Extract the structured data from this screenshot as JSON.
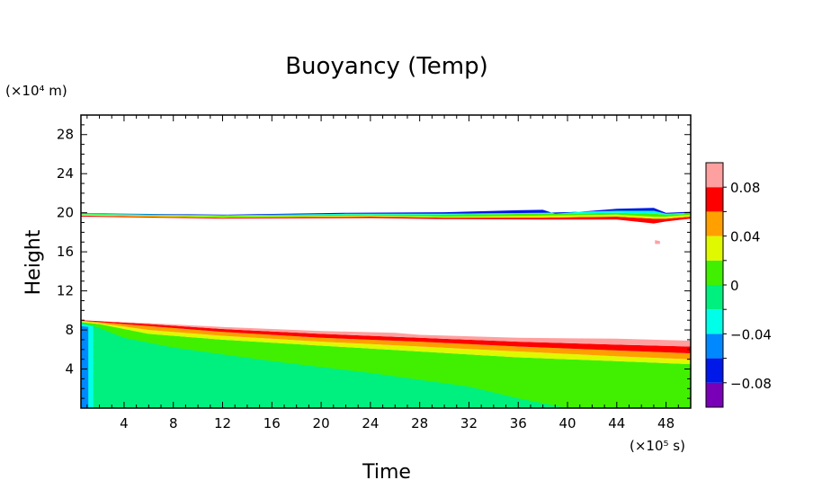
{
  "chart_data": {
    "type": "heatmap",
    "title": "Buoyancy (Temp)",
    "xlabel": "Time",
    "ylabel": "Height",
    "x_unit": "(×10⁵ s)",
    "y_unit": "(×10⁴ m)",
    "xlim": [
      0.5,
      50
    ],
    "ylim": [
      0,
      30
    ],
    "x_ticks": [
      4,
      8,
      12,
      16,
      20,
      24,
      28,
      32,
      36,
      40,
      44,
      48
    ],
    "y_ticks": [
      4,
      8,
      12,
      16,
      20,
      24,
      28
    ],
    "grid": false,
    "colorbar": {
      "range": [
        -0.1,
        0.1
      ],
      "levels": [
        {
          "min": -0.1,
          "max": -0.08,
          "color": "#7a00b8"
        },
        {
          "min": -0.08,
          "max": -0.06,
          "color": "#0018e8"
        },
        {
          "min": -0.06,
          "max": -0.04,
          "color": "#0088ff"
        },
        {
          "min": -0.04,
          "max": -0.02,
          "color": "#00ffe8"
        },
        {
          "min": -0.02,
          "max": 0.0,
          "color": "#00f080"
        },
        {
          "min": 0.0,
          "max": 0.02,
          "color": "#40f000"
        },
        {
          "min": 0.02,
          "max": 0.04,
          "color": "#e0f800"
        },
        {
          "min": 0.04,
          "max": 0.06,
          "color": "#ffa000"
        },
        {
          "min": 0.06,
          "max": 0.08,
          "color": "#ff0000"
        },
        {
          "min": 0.08,
          "max": 0.1,
          "color": "#ffa0a0"
        }
      ],
      "tick_values": [
        0.08,
        0.04,
        0,
        -0.04,
        -0.08
      ],
      "tick_labels": [
        "0.08",
        "0.04",
        "0",
        "−0.04",
        "−0.08"
      ]
    },
    "regions": [
      {
        "name": "lower-green-base",
        "color": "#40f000",
        "upper": [
          [
            0.5,
            8.8
          ],
          [
            2,
            8.6
          ],
          [
            6,
            7.6
          ],
          [
            12,
            7.0
          ],
          [
            20,
            6.4
          ],
          [
            28,
            5.8
          ],
          [
            36,
            5.2
          ],
          [
            44,
            4.8
          ],
          [
            50,
            4.5
          ]
        ],
        "lower": [
          [
            0.5,
            0
          ],
          [
            50,
            0
          ]
        ]
      },
      {
        "name": "lower-yellow",
        "color": "#e0f800",
        "upper": [
          [
            0.5,
            8.9
          ],
          [
            2,
            8.7
          ],
          [
            6,
            8.0
          ],
          [
            12,
            7.4
          ],
          [
            20,
            6.8
          ],
          [
            28,
            6.3
          ],
          [
            36,
            5.8
          ],
          [
            44,
            5.3
          ],
          [
            50,
            5.0
          ]
        ],
        "lower": [
          [
            0.5,
            8.8
          ],
          [
            2,
            8.6
          ],
          [
            6,
            7.6
          ],
          [
            12,
            7.0
          ],
          [
            20,
            6.4
          ],
          [
            28,
            5.8
          ],
          [
            36,
            5.2
          ],
          [
            44,
            4.8
          ],
          [
            50,
            4.5
          ]
        ]
      },
      {
        "name": "lower-orange",
        "color": "#ffa000",
        "upper": [
          [
            0.5,
            8.95
          ],
          [
            2,
            8.8
          ],
          [
            6,
            8.4
          ],
          [
            12,
            7.8
          ],
          [
            20,
            7.2
          ],
          [
            28,
            6.8
          ],
          [
            36,
            6.3
          ],
          [
            44,
            5.9
          ],
          [
            50,
            5.6
          ]
        ],
        "lower": [
          [
            0.5,
            8.9
          ],
          [
            2,
            8.7
          ],
          [
            6,
            8.0
          ],
          [
            12,
            7.4
          ],
          [
            20,
            6.8
          ],
          [
            28,
            6.3
          ],
          [
            36,
            5.8
          ],
          [
            44,
            5.3
          ],
          [
            50,
            5.0
          ]
        ]
      },
      {
        "name": "lower-red",
        "color": "#ff0000",
        "upper": [
          [
            0.5,
            9.0
          ],
          [
            2,
            8.9
          ],
          [
            6,
            8.6
          ],
          [
            12,
            8.1
          ],
          [
            20,
            7.6
          ],
          [
            28,
            7.2
          ],
          [
            36,
            6.8
          ],
          [
            44,
            6.5
          ],
          [
            50,
            6.3
          ]
        ],
        "lower": [
          [
            0.5,
            8.95
          ],
          [
            2,
            8.8
          ],
          [
            6,
            8.4
          ],
          [
            12,
            7.8
          ],
          [
            20,
            7.2
          ],
          [
            28,
            6.8
          ],
          [
            36,
            6.3
          ],
          [
            44,
            5.9
          ],
          [
            50,
            5.6
          ]
        ]
      },
      {
        "name": "lower-pink",
        "color": "#ffa0a0",
        "upper": [
          [
            0.5,
            9.0
          ],
          [
            2,
            8.9
          ],
          [
            6,
            8.7
          ],
          [
            12,
            8.3
          ],
          [
            20,
            7.9
          ],
          [
            26,
            7.7
          ],
          [
            28,
            7.5
          ],
          [
            36,
            7.2
          ],
          [
            44,
            7.1
          ],
          [
            50,
            6.9
          ]
        ],
        "lower": [
          [
            0.5,
            9.0
          ],
          [
            2,
            8.9
          ],
          [
            6,
            8.6
          ],
          [
            12,
            8.1
          ],
          [
            20,
            7.6
          ],
          [
            28,
            7.2
          ],
          [
            36,
            6.8
          ],
          [
            44,
            6.5
          ],
          [
            50,
            6.3
          ]
        ]
      },
      {
        "name": "bottom-spring-green",
        "color": "#00f080",
        "upper": [
          [
            0.5,
            8.8
          ],
          [
            2,
            8.2
          ],
          [
            4,
            7.2
          ],
          [
            8,
            6.2
          ],
          [
            16,
            4.8
          ],
          [
            24,
            3.6
          ],
          [
            32,
            2.2
          ],
          [
            36,
            1.0
          ],
          [
            40,
            0
          ]
        ],
        "lower": [
          [
            0.5,
            0
          ],
          [
            40,
            0
          ]
        ]
      },
      {
        "name": "left-cyan-strip",
        "color": "#00ffe8",
        "upper": [
          [
            0.5,
            8.6
          ],
          [
            1.5,
            8.4
          ]
        ],
        "lower": [
          [
            0.5,
            0
          ],
          [
            1.5,
            0
          ]
        ]
      },
      {
        "name": "left-azure-strip",
        "color": "#0088ff",
        "upper": [
          [
            0.5,
            8.4
          ],
          [
            1.1,
            8.3
          ]
        ],
        "lower": [
          [
            0.5,
            0
          ],
          [
            1.1,
            0
          ]
        ]
      },
      {
        "name": "upper-red",
        "color": "#ff0000",
        "upper": [
          [
            0.5,
            19.7
          ],
          [
            12,
            19.5
          ],
          [
            24,
            19.6
          ],
          [
            30,
            19.5
          ],
          [
            38,
            19.5
          ],
          [
            44,
            19.6
          ],
          [
            47,
            19.4
          ],
          [
            48,
            19.4
          ],
          [
            50,
            19.6
          ]
        ],
        "lower": [
          [
            0.5,
            19.6
          ],
          [
            12,
            19.4
          ],
          [
            24,
            19.45
          ],
          [
            30,
            19.35
          ],
          [
            38,
            19.3
          ],
          [
            44,
            19.3
          ],
          [
            47,
            18.9
          ],
          [
            48,
            19.1
          ],
          [
            50,
            19.4
          ]
        ]
      },
      {
        "name": "upper-yellow",
        "color": "#e0f800",
        "upper": [
          [
            0.5,
            19.8
          ],
          [
            12,
            19.6
          ],
          [
            24,
            19.7
          ],
          [
            30,
            19.6
          ],
          [
            38,
            19.7
          ],
          [
            44,
            19.8
          ],
          [
            47,
            19.6
          ],
          [
            48,
            19.6
          ],
          [
            50,
            19.8
          ]
        ],
        "lower": [
          [
            0.5,
            19.7
          ],
          [
            12,
            19.5
          ],
          [
            24,
            19.6
          ],
          [
            30,
            19.5
          ],
          [
            38,
            19.5
          ],
          [
            44,
            19.6
          ],
          [
            47,
            19.4
          ],
          [
            48,
            19.4
          ],
          [
            50,
            19.6
          ]
        ]
      },
      {
        "name": "upper-green",
        "color": "#40f000",
        "upper": [
          [
            0.5,
            19.85
          ],
          [
            12,
            19.7
          ],
          [
            22,
            19.8
          ],
          [
            30,
            19.8
          ],
          [
            38,
            19.9
          ],
          [
            44,
            20.0
          ],
          [
            47,
            19.9
          ],
          [
            48,
            19.8
          ],
          [
            50,
            19.9
          ]
        ],
        "lower": [
          [
            0.5,
            19.8
          ],
          [
            12,
            19.6
          ],
          [
            24,
            19.7
          ],
          [
            30,
            19.6
          ],
          [
            38,
            19.7
          ],
          [
            44,
            19.8
          ],
          [
            47,
            19.6
          ],
          [
            48,
            19.6
          ],
          [
            50,
            19.8
          ]
        ]
      },
      {
        "name": "upper-cyan",
        "color": "#00ffe8",
        "upper": [
          [
            0.5,
            19.9
          ],
          [
            12,
            19.75
          ],
          [
            22,
            19.9
          ],
          [
            30,
            19.9
          ],
          [
            38,
            20.0
          ],
          [
            44,
            20.2
          ],
          [
            47,
            20.2
          ],
          [
            48,
            19.9
          ],
          [
            50,
            20.0
          ]
        ],
        "lower": [
          [
            0.5,
            19.85
          ],
          [
            12,
            19.7
          ],
          [
            22,
            19.8
          ],
          [
            30,
            19.8
          ],
          [
            38,
            19.9
          ],
          [
            44,
            20.0
          ],
          [
            47,
            19.9
          ],
          [
            48,
            19.8
          ],
          [
            50,
            19.9
          ]
        ]
      },
      {
        "name": "upper-blue",
        "color": "#0018e8",
        "upper": [
          [
            0.5,
            19.95
          ],
          [
            12,
            19.8
          ],
          [
            22,
            20.0
          ],
          [
            30,
            20.05
          ],
          [
            36,
            20.25
          ],
          [
            38,
            20.3
          ],
          [
            39,
            19.9
          ],
          [
            44,
            20.4
          ],
          [
            47,
            20.5
          ],
          [
            48,
            20.0
          ],
          [
            50,
            20.1
          ]
        ],
        "lower": [
          [
            0.5,
            19.9
          ],
          [
            12,
            19.75
          ],
          [
            22,
            19.9
          ],
          [
            30,
            19.9
          ],
          [
            38,
            20.0
          ],
          [
            44,
            20.2
          ],
          [
            47,
            20.2
          ],
          [
            48,
            19.9
          ],
          [
            50,
            20.0
          ]
        ]
      },
      {
        "name": "pink-dot",
        "color": "#ffa0a0",
        "upper": [
          [
            47.1,
            17.2
          ],
          [
            47.5,
            17.1
          ]
        ],
        "lower": [
          [
            47.1,
            16.8
          ],
          [
            47.5,
            16.8
          ]
        ]
      }
    ]
  }
}
